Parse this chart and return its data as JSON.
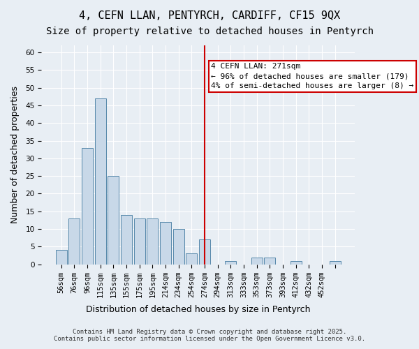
{
  "title": "4, CEFN LLAN, PENTYRCH, CARDIFF, CF15 9QX",
  "subtitle": "Size of property relative to detached houses in Pentyrch",
  "xlabel": "Distribution of detached houses by size in Pentyrch",
  "ylabel": "Number of detached properties",
  "bar_values": [
    4,
    13,
    33,
    47,
    25,
    14,
    13,
    13,
    12,
    10,
    3,
    7,
    0,
    1,
    0,
    2,
    2,
    0,
    1,
    0,
    0,
    1
  ],
  "categories": [
    "56sqm",
    "76sqm",
    "96sqm",
    "115sqm",
    "135sqm",
    "155sqm",
    "175sqm",
    "195sqm",
    "214sqm",
    "234sqm",
    "254sqm",
    "274sqm",
    "294sqm",
    "313sqm",
    "333sqm",
    "353sqm",
    "373sqm",
    "393sqm",
    "412sqm",
    "432sqm",
    "452sqm",
    ""
  ],
  "bar_color": "#c8d8e8",
  "bar_edge_color": "#5588aa",
  "background_color": "#e8eef4",
  "grid_color": "#ffffff",
  "vline_x_index": 11,
  "vline_color": "#cc0000",
  "annotation_text": "4 CEFN LLAN: 271sqm\n← 96% of detached houses are smaller (179)\n4% of semi-detached houses are larger (8) →",
  "annotation_box_color": "#cc0000",
  "ylim": [
    0,
    62
  ],
  "yticks": [
    0,
    5,
    10,
    15,
    20,
    25,
    30,
    35,
    40,
    45,
    50,
    55,
    60
  ],
  "footer": "Contains HM Land Registry data © Crown copyright and database right 2025.\nContains public sector information licensed under the Open Government Licence v3.0.",
  "title_fontsize": 11,
  "subtitle_fontsize": 10,
  "xlabel_fontsize": 9,
  "ylabel_fontsize": 9,
  "tick_fontsize": 7.5,
  "annotation_fontsize": 8
}
